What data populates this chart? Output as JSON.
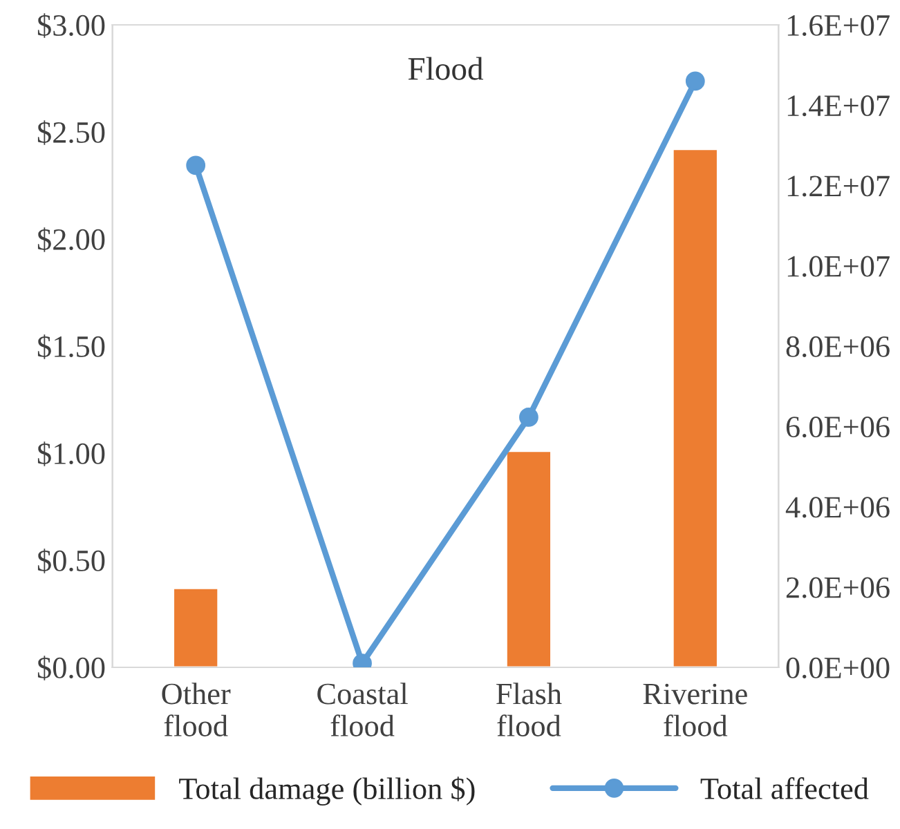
{
  "chart_data": {
    "type": "bar",
    "title": "Flood",
    "categories": [
      "Other\nflood",
      "Coastal\nflood",
      "Flash\nflood",
      "Riverine\nflood"
    ],
    "series": [
      {
        "name": "Total damage (billion $)",
        "color": "#ed7d31",
        "values": [
          0.37,
          null,
          1.01,
          2.42
        ]
      },
      {
        "name": "Total affected",
        "type": "line",
        "axis": "y2",
        "color": "#5b9bd5",
        "marker": "circle",
        "values": [
          12500000,
          100000,
          6230000,
          14600000
        ]
      }
    ],
    "ylim": [
      0,
      3
    ],
    "yticks": [
      {
        "value": 0,
        "label": "$0.00"
      },
      {
        "value": 0.5,
        "label": "$0.50"
      },
      {
        "value": 1,
        "label": "$1.00"
      },
      {
        "value": 1.5,
        "label": "$1.50"
      },
      {
        "value": 2,
        "label": "$2.00"
      },
      {
        "value": 2.5,
        "label": "$2.50"
      },
      {
        "value": 3,
        "label": "$3.00"
      }
    ],
    "y2lim": [
      0,
      16000000
    ],
    "y2ticks": [
      {
        "value": 0,
        "label": "0.0E+00"
      },
      {
        "value": 2000000,
        "label": "2.0E+06"
      },
      {
        "value": 4000000,
        "label": "4.0E+06"
      },
      {
        "value": 6000000,
        "label": "6.0E+06"
      },
      {
        "value": 8000000,
        "label": "8.0E+06"
      },
      {
        "value": 10000000,
        "label": "1.0E+07"
      },
      {
        "value": 12000000,
        "label": "1.2E+07"
      },
      {
        "value": 14000000,
        "label": "1.4E+07"
      },
      {
        "value": 16000000,
        "label": "1.6E+07"
      }
    ],
    "grid": false,
    "legend": "bottom"
  }
}
